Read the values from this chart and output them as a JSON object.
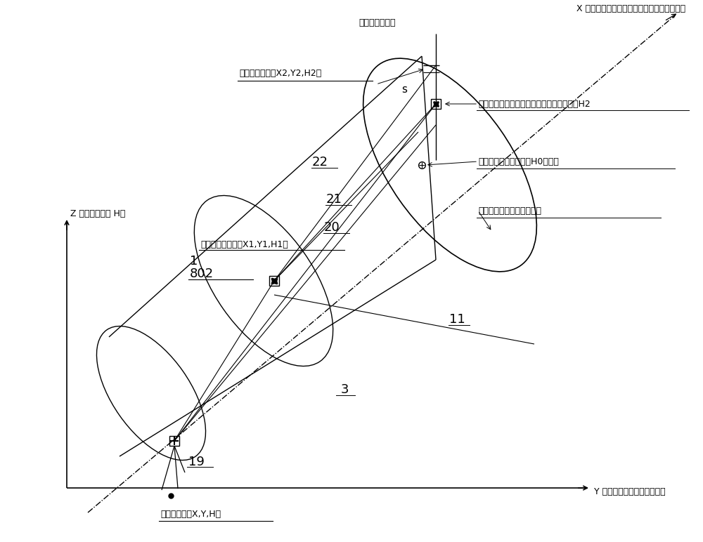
{
  "bg_color": "#ffffff",
  "lc": "#000000",
  "labels": {
    "x_axis": "X 轴（平面坐标，直线型隧洞中心轴线框号）",
    "y_axis": "Y 轴（平面坐标，轴线偏差）",
    "z_axis": "Z 轴（高程系统 H）",
    "tunnel_baseline": "隧洞轴线基准线",
    "laser_h2": "激光指向仪在掌子面标定的导向点及高层面H2",
    "tunnel_circle": "隧洞开挖圆形断面圆心H0及腰线",
    "tunnel_palm": "隧洞开挖掌子面设计轮廓线",
    "laser_coord": "激光指向仪坐标（X1,Y1,H1）",
    "adjust_coord": "调整校正坐标（X2,Y2,H2）",
    "survey_coord": "测室坐标系（X,Y,H）",
    "num_1": "1",
    "num_802": "802",
    "num_3": "3",
    "num_11": "11",
    "num_19": "19",
    "num_20": "20",
    "num_21": "21",
    "num_22": "22",
    "label_s": "s"
  }
}
